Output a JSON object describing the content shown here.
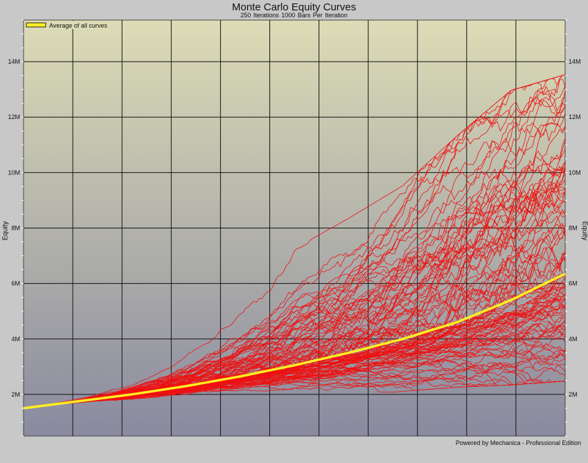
{
  "chart_data": {
    "type": "line",
    "title": "Monte Carlo Equity Curves",
    "subtitle": "250 Iterations    1000 Bars Per Iteration",
    "ylabel": "Equity",
    "ylabel_right": "Equity",
    "xlim": [
      0,
      1000
    ],
    "ylim": [
      500000,
      15500000
    ],
    "yticks": [
      2000000,
      4000000,
      6000000,
      8000000,
      10000000,
      12000000,
      14000000
    ],
    "ytick_labels": [
      "2M",
      "4M",
      "6M",
      "8M",
      "10M",
      "12M",
      "14M"
    ],
    "xgrid_count": 11,
    "grid": true,
    "legend": {
      "position": "top-left",
      "entries": [
        "Average of all curves"
      ]
    },
    "colors": {
      "average": "#ffee22",
      "curves": "#ee1111",
      "bg_top": "#dcdcb6",
      "bg_bottom": "#8a8aa0"
    },
    "series": [
      {
        "name": "Average of all curves",
        "x": [
          0,
          100,
          200,
          300,
          400,
          500,
          600,
          700,
          800,
          900,
          1000
        ],
        "values": [
          1500000,
          1750000,
          2000000,
          2300000,
          2650000,
          3050000,
          3500000,
          4000000,
          4600000,
          5400000,
          6350000
        ]
      }
    ],
    "iterations": 250,
    "envelope": {
      "x": [
        0,
        100,
        200,
        300,
        400,
        500,
        600,
        700,
        800,
        900,
        1000
      ],
      "low": [
        1500000,
        1400000,
        1400000,
        1500000,
        1600000,
        1700000,
        1800000,
        1900000,
        2000000,
        2000000,
        2050000
      ],
      "high": [
        1500000,
        2300000,
        3200000,
        4600000,
        6300000,
        8000000,
        9200000,
        10500000,
        12500000,
        14300000,
        14800000
      ]
    }
  },
  "footer": "Powered by Mechanica - Professional Edition"
}
